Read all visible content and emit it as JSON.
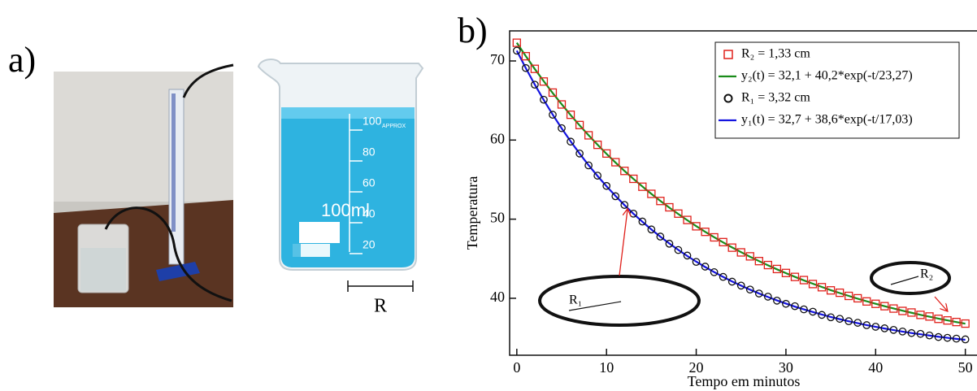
{
  "panel_a": {
    "label": "a)",
    "beaker_text": "100ml",
    "approx": "APPROX",
    "scale": [
      "100",
      "80",
      "60",
      "40",
      "20"
    ],
    "radius_label": "R"
  },
  "chart_data": {
    "type": "line",
    "panel_label": "b)",
    "xlabel": "Tempo em minutos",
    "ylabel": "Temperatura",
    "xlim": [
      -0.8,
      51.3
    ],
    "ylim": [
      32.8,
      73.8
    ],
    "xticks": [
      0,
      10,
      20,
      30,
      40,
      50
    ],
    "yticks": [
      40,
      50,
      60,
      70
    ],
    "annotations": [
      "R₁",
      "R₂"
    ],
    "x": [
      0,
      1,
      2,
      3,
      4,
      5,
      6,
      7,
      8,
      9,
      10,
      11,
      12,
      13,
      14,
      15,
      16,
      17,
      18,
      19,
      20,
      21,
      22,
      23,
      24,
      25,
      26,
      27,
      28,
      29,
      30,
      31,
      32,
      33,
      34,
      35,
      36,
      37,
      38,
      39,
      40,
      41,
      42,
      43,
      44,
      45,
      46,
      47,
      48,
      49,
      50
    ],
    "series": [
      {
        "name": "R₂ = 1,33 cm",
        "color": "#e0201b",
        "style": "square",
        "values": [
          72.3,
          70.6,
          69.0,
          67.4,
          66.0,
          64.5,
          63.2,
          61.9,
          60.6,
          59.4,
          58.3,
          57.2,
          56.1,
          55.1,
          54.1,
          53.2,
          52.3,
          51.5,
          50.7,
          49.9,
          49.1,
          48.4,
          47.7,
          47.1,
          46.4,
          45.8,
          45.3,
          44.7,
          44.2,
          43.7,
          43.2,
          42.7,
          42.3,
          41.8,
          41.4,
          41.0,
          40.7,
          40.3,
          40.0,
          39.6,
          39.3,
          39.0,
          38.7,
          38.4,
          38.2,
          37.9,
          37.7,
          37.4,
          37.2,
          37.0,
          36.8
        ]
      },
      {
        "name": "y₂(t) = 32,1 + 40,2*exp(-t/23,27)",
        "color": "#1a8c1a",
        "style": "line",
        "values": [
          72.3,
          70.61,
          68.99,
          67.44,
          65.95,
          64.53,
          63.16,
          61.86,
          60.61,
          59.41,
          58.26,
          57.16,
          56.1,
          55.09,
          54.13,
          53.2,
          52.31,
          51.46,
          50.65,
          49.87,
          49.12,
          48.4,
          47.72,
          47.06,
          46.43,
          45.83,
          45.25,
          44.7,
          44.17,
          43.66,
          43.18,
          42.71,
          42.26,
          41.84,
          41.43,
          41.03,
          40.66,
          40.3,
          39.95,
          39.62,
          39.31,
          39.0,
          38.71,
          38.43,
          38.17,
          37.91,
          37.67,
          37.43,
          37.21,
          36.99,
          36.79
        ]
      },
      {
        "name": "R₁ = 3,32 cm",
        "color": "#111111",
        "style": "circle",
        "values": [
          71.3,
          69.1,
          67.0,
          65.1,
          63.2,
          61.5,
          59.8,
          58.3,
          56.8,
          55.5,
          54.2,
          52.9,
          51.8,
          50.7,
          49.7,
          48.7,
          47.8,
          46.9,
          46.1,
          45.4,
          44.6,
          44.0,
          43.3,
          42.7,
          42.1,
          41.6,
          41.1,
          40.6,
          40.2,
          39.7,
          39.3,
          39.0,
          38.6,
          38.3,
          37.9,
          37.6,
          37.4,
          37.1,
          36.9,
          36.6,
          36.4,
          36.2,
          36.0,
          35.8,
          35.6,
          35.5,
          35.3,
          35.1,
          35.0,
          34.9,
          34.8
        ]
      },
      {
        "name": "y₁(t) = 32,7 + 38,6*exp(-t/17,03)",
        "color": "#1414e0",
        "style": "line",
        "values": [
          71.3,
          69.1,
          67.02,
          65.07,
          63.22,
          61.48,
          59.84,
          58.29,
          56.83,
          55.46,
          54.16,
          52.94,
          51.78,
          50.69,
          49.67,
          48.7,
          47.79,
          46.93,
          46.12,
          45.35,
          44.63,
          43.95,
          43.31,
          42.7,
          42.13,
          41.6,
          41.09,
          40.61,
          40.16,
          39.73,
          39.33,
          38.95,
          38.6,
          38.26,
          37.94,
          37.64,
          37.36,
          37.1,
          36.85,
          36.61,
          36.39,
          36.18,
          35.98,
          35.79,
          35.61,
          35.45,
          35.29,
          35.14,
          35.0,
          34.87,
          34.75
        ]
      }
    ]
  }
}
